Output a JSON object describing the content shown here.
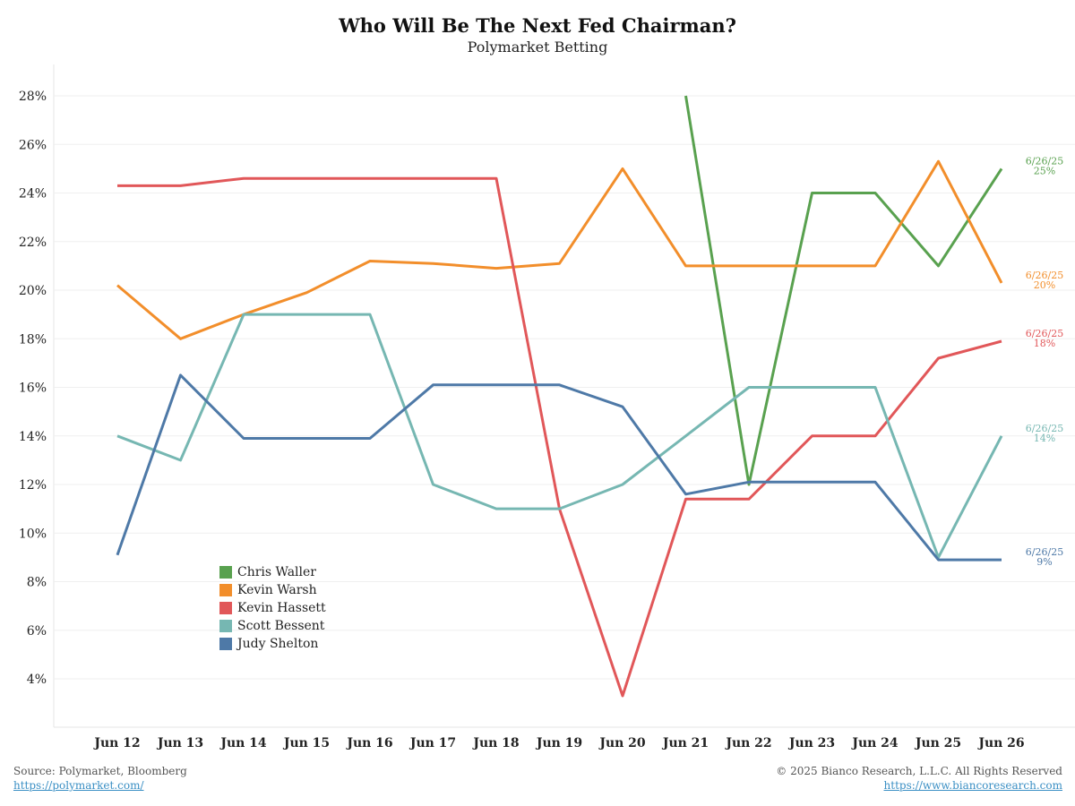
{
  "chart_data": {
    "type": "line",
    "title": "Who Will Be The Next Fed Chairman?",
    "subtitle": "Polymarket Betting",
    "xlabel": "",
    "ylabel": "",
    "categories": [
      "Jun 12",
      "Jun 13",
      "Jun 14",
      "Jun 15",
      "Jun 16",
      "Jun 17",
      "Jun 18",
      "Jun 19",
      "Jun 20",
      "Jun 21",
      "Jun 22",
      "Jun 23",
      "Jun 24",
      "Jun 25",
      "Jun 26"
    ],
    "ylim": [
      2,
      29
    ],
    "yticks": [
      4,
      6,
      8,
      10,
      12,
      14,
      16,
      18,
      20,
      22,
      24,
      26,
      28
    ],
    "ytick_labels": [
      "4%",
      "6%",
      "8%",
      "10%",
      "12%",
      "14%",
      "16%",
      "18%",
      "20%",
      "22%",
      "24%",
      "26%",
      "28%"
    ],
    "grid": true,
    "legend_position": "bottom-left",
    "series": [
      {
        "name": "Chris Waller",
        "color": "#59a14f",
        "values": [
          null,
          null,
          null,
          null,
          null,
          null,
          null,
          null,
          null,
          28,
          12,
          24,
          24,
          21,
          25
        ],
        "end_label_date": "6/26/25",
        "end_label_value": "25%"
      },
      {
        "name": "Kevin Warsh",
        "color": "#f28e2b",
        "values": [
          20.2,
          18,
          19,
          19.9,
          21.2,
          21.1,
          20.9,
          21.1,
          25,
          21,
          21,
          21,
          21,
          25.3,
          20.3
        ],
        "end_label_date": "6/26/25",
        "end_label_value": "20%"
      },
      {
        "name": "Kevin Hassett",
        "color": "#e15759",
        "values": [
          24.3,
          24.3,
          24.6,
          24.6,
          24.6,
          24.6,
          24.6,
          11,
          3.3,
          11.4,
          11.4,
          14,
          14,
          17.2,
          17.9
        ],
        "end_label_date": "6/26/25",
        "end_label_value": "18%"
      },
      {
        "name": "Scott Bessent",
        "color": "#76b7b2",
        "values": [
          14,
          13,
          19,
          19,
          19,
          12,
          11,
          11,
          12,
          14,
          16,
          16,
          16,
          9,
          14
        ],
        "end_label_date": "6/26/25",
        "end_label_value": "14%"
      },
      {
        "name": "Judy Shelton",
        "color": "#4e79a7",
        "values": [
          9.1,
          16.5,
          13.9,
          13.9,
          13.9,
          16.1,
          16.1,
          16.1,
          15.2,
          11.6,
          12.1,
          12.1,
          12.1,
          8.9,
          8.9
        ],
        "end_label_date": "6/26/25",
        "end_label_value": "9%"
      }
    ]
  },
  "footer": {
    "source": "Source: Polymarket, Bloomberg",
    "source_link": "https://polymarket.com/",
    "copyright": "© 2025 Bianco Research, L.L.C. All Rights Reserved",
    "copyright_link": "https://www.biancoresearch.com"
  }
}
